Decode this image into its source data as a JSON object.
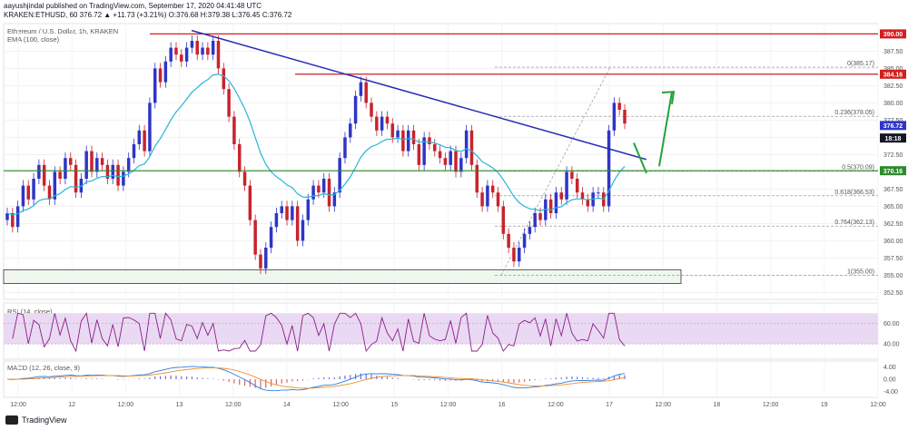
{
  "header": {
    "line1": "aayushjindal published on TradingView.com, September 17, 2020 04:41:48 UTC",
    "line2": "KRAKEN:ETHUSD, 60  376.72  ▲ +11.73 (+3.21%)  O:376.68  H:379.38  L:376.45  C:376.72"
  },
  "legend": {
    "symbol": "Ethereum / U.S. Dollar, 1h, KRAKEN",
    "ema": "EMA (100, close)",
    "rsi": "RSI (14, close)",
    "macd": "MACD (12, 26, close, 9)"
  },
  "branding": "TradingView",
  "colors": {
    "up": "#2e35c7",
    "down": "#c8232c",
    "ema": "#27b4d6",
    "trendline": "#2b2fb5",
    "resistance": "#d21e1e",
    "support": "#2d8a2d",
    "arrow": "#22a33a",
    "rsi": "#8a1e8a",
    "rsi_band": "#ead9f2",
    "macd": "#2a7de1",
    "signal": "#f28c28",
    "fib": "#888888"
  },
  "chart_data": {
    "type": "candlestick",
    "price_axis": {
      "ticks": [
        "387.50",
        "385.00",
        "382.50",
        "380.00",
        "377.50",
        "375.00",
        "372.50",
        "370.00",
        "367.50",
        "365.00",
        "362.50",
        "360.00",
        "357.50",
        "355.00",
        "352.50"
      ],
      "min": 351.5,
      "max": 391.5
    },
    "badges": [
      {
        "label": "390.00",
        "value": 390.0,
        "color": "#d21e1e"
      },
      {
        "label": "384.16",
        "value": 384.16,
        "color": "#d21e1e"
      },
      {
        "label": "376.72",
        "value": 376.72,
        "color": "#2e35c7"
      },
      {
        "label": "18:18",
        "value": 374.9,
        "color": "#131722"
      },
      {
        "label": "370.16",
        "value": 370.16,
        "color": "#2d8a2d"
      }
    ],
    "x_labels": [
      "12:00",
      "12",
      "12:00",
      "13",
      "12:00",
      "14",
      "12:00",
      "15",
      "12:00",
      "16",
      "12:00",
      "17",
      "12:00",
      "18",
      "12:00",
      "19",
      "12:00"
    ],
    "fib_levels": [
      {
        "label": "0(385.17)",
        "value": 385.17
      },
      {
        "label": "0.236(378.05)",
        "value": 378.05
      },
      {
        "label": "0.5(370.09)",
        "value": 370.09
      },
      {
        "label": "0.618(366.53)",
        "value": 366.53
      },
      {
        "label": "0.764(362.13)",
        "value": 362.13
      },
      {
        "label": "1(355.00)",
        "value": 355.0
      }
    ],
    "resistance_lines": [
      390.0,
      384.16
    ],
    "support_line": 370.16,
    "support_zone": [
      353.8,
      355.8
    ],
    "trendline": {
      "from": [
        0.215,
        390.5
      ],
      "to": [
        0.735,
        371.8
      ]
    },
    "closes": [
      364,
      362,
      365,
      368,
      366,
      369,
      371,
      368,
      366,
      370,
      369,
      372,
      371,
      367,
      369,
      373,
      370,
      372,
      371,
      369,
      371,
      368,
      370,
      372,
      374,
      376,
      373,
      380,
      385,
      383,
      386,
      388,
      387,
      386,
      388,
      389,
      387,
      388,
      387,
      389,
      385,
      382,
      378,
      374,
      370,
      368,
      363,
      358,
      356,
      359,
      362,
      364,
      365,
      363,
      365,
      360,
      363,
      366,
      368,
      367,
      369,
      365,
      367,
      372,
      375,
      377,
      381,
      383,
      380,
      378,
      376,
      378,
      377,
      375,
      376,
      373,
      376,
      374,
      371,
      375,
      374,
      373,
      372,
      371,
      373,
      370,
      372,
      376,
      371,
      367,
      365,
      368,
      367,
      365,
      361,
      359,
      357,
      359,
      361,
      362,
      364,
      363,
      366,
      364,
      367,
      366,
      370,
      369,
      367,
      366,
      365,
      367,
      367,
      365,
      376,
      380,
      379,
      377
    ],
    "rsi_axis": {
      "ticks": [
        "60.00",
        "40.00"
      ],
      "min": 25,
      "max": 80,
      "band": [
        40,
        70
      ]
    },
    "macd_axis": {
      "ticks": [
        "4.00",
        "0.00",
        "-4.00"
      ],
      "min": -6,
      "max": 6
    }
  }
}
